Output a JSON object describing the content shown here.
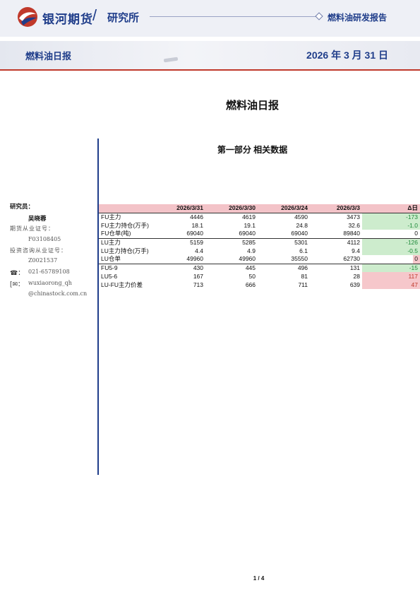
{
  "header": {
    "brand": "银河期货",
    "slash": "/",
    "institute": "研究所",
    "report_type": "燃料油研发报告"
  },
  "banner": {
    "title": "燃料油日报",
    "date": "2026 年 3 月 31 日"
  },
  "document": {
    "title": "燃料油日报",
    "section": "第一部分 相关数据"
  },
  "sidebar": {
    "heading": "研究员：",
    "name": "吴晓蓉",
    "futures_cert_label": "期货从业证号：",
    "futures_cert": "F03108405",
    "invest_cert_label": "投资咨询从业证号：",
    "invest_cert": "Z0021537",
    "phone_icon": "☎：",
    "phone": "021-65789108",
    "email_icon": "[✉：",
    "email_user": "wuxiaorong_qh",
    "email_domain": "@chinastock.com.cn"
  },
  "table": {
    "headers": [
      "",
      "2026/3/31",
      "2026/3/30",
      "2026/3/24",
      "2026/3/3",
      "Δ日"
    ],
    "rows": [
      {
        "label": "FU主力",
        "v": [
          "4446",
          "4619",
          "4590",
          "3473"
        ],
        "delta": "-173",
        "tone": "neg",
        "sep": false
      },
      {
        "label": "FU主力持仓(万手)",
        "v": [
          "18.1",
          "19.1",
          "24.8",
          "32.6"
        ],
        "delta": "-1.0",
        "tone": "neg",
        "sep": false
      },
      {
        "label": "FU仓单(吨)",
        "v": [
          "69040",
          "69040",
          "69040",
          "89840"
        ],
        "delta": "0",
        "tone": "zero",
        "sep": true
      },
      {
        "label": "LU主力",
        "v": [
          "5159",
          "5285",
          "5301",
          "4112"
        ],
        "delta": "-126",
        "tone": "neg",
        "sep": false
      },
      {
        "label": "LU主力持仓(万手)",
        "v": [
          "4.4",
          "4.9",
          "6.1",
          "9.4"
        ],
        "delta": "-0.5",
        "tone": "neg",
        "sep": false
      },
      {
        "label": "LU仓单",
        "v": [
          "49960",
          "49960",
          "35550",
          "62730"
        ],
        "delta": "0",
        "tone": "zero-pink",
        "sep": true
      },
      {
        "label": "FU5-9",
        "v": [
          "430",
          "445",
          "496",
          "131"
        ],
        "delta": "-15",
        "tone": "neg",
        "sep": false
      },
      {
        "label": "LU5-6",
        "v": [
          "167",
          "50",
          "81",
          "28"
        ],
        "delta": "117",
        "tone": "pos",
        "sep": false
      },
      {
        "label": "LU-FU主力价差",
        "v": [
          "713",
          "666",
          "711",
          "639"
        ],
        "delta": "47",
        "tone": "pos",
        "sep": false
      }
    ]
  },
  "page": "1 / 4",
  "colors": {
    "brand_blue": "#1f3d8a",
    "accent_red": "#c0392b",
    "up_bg": "#f6c7cb",
    "down_bg": "#cdeccd"
  }
}
